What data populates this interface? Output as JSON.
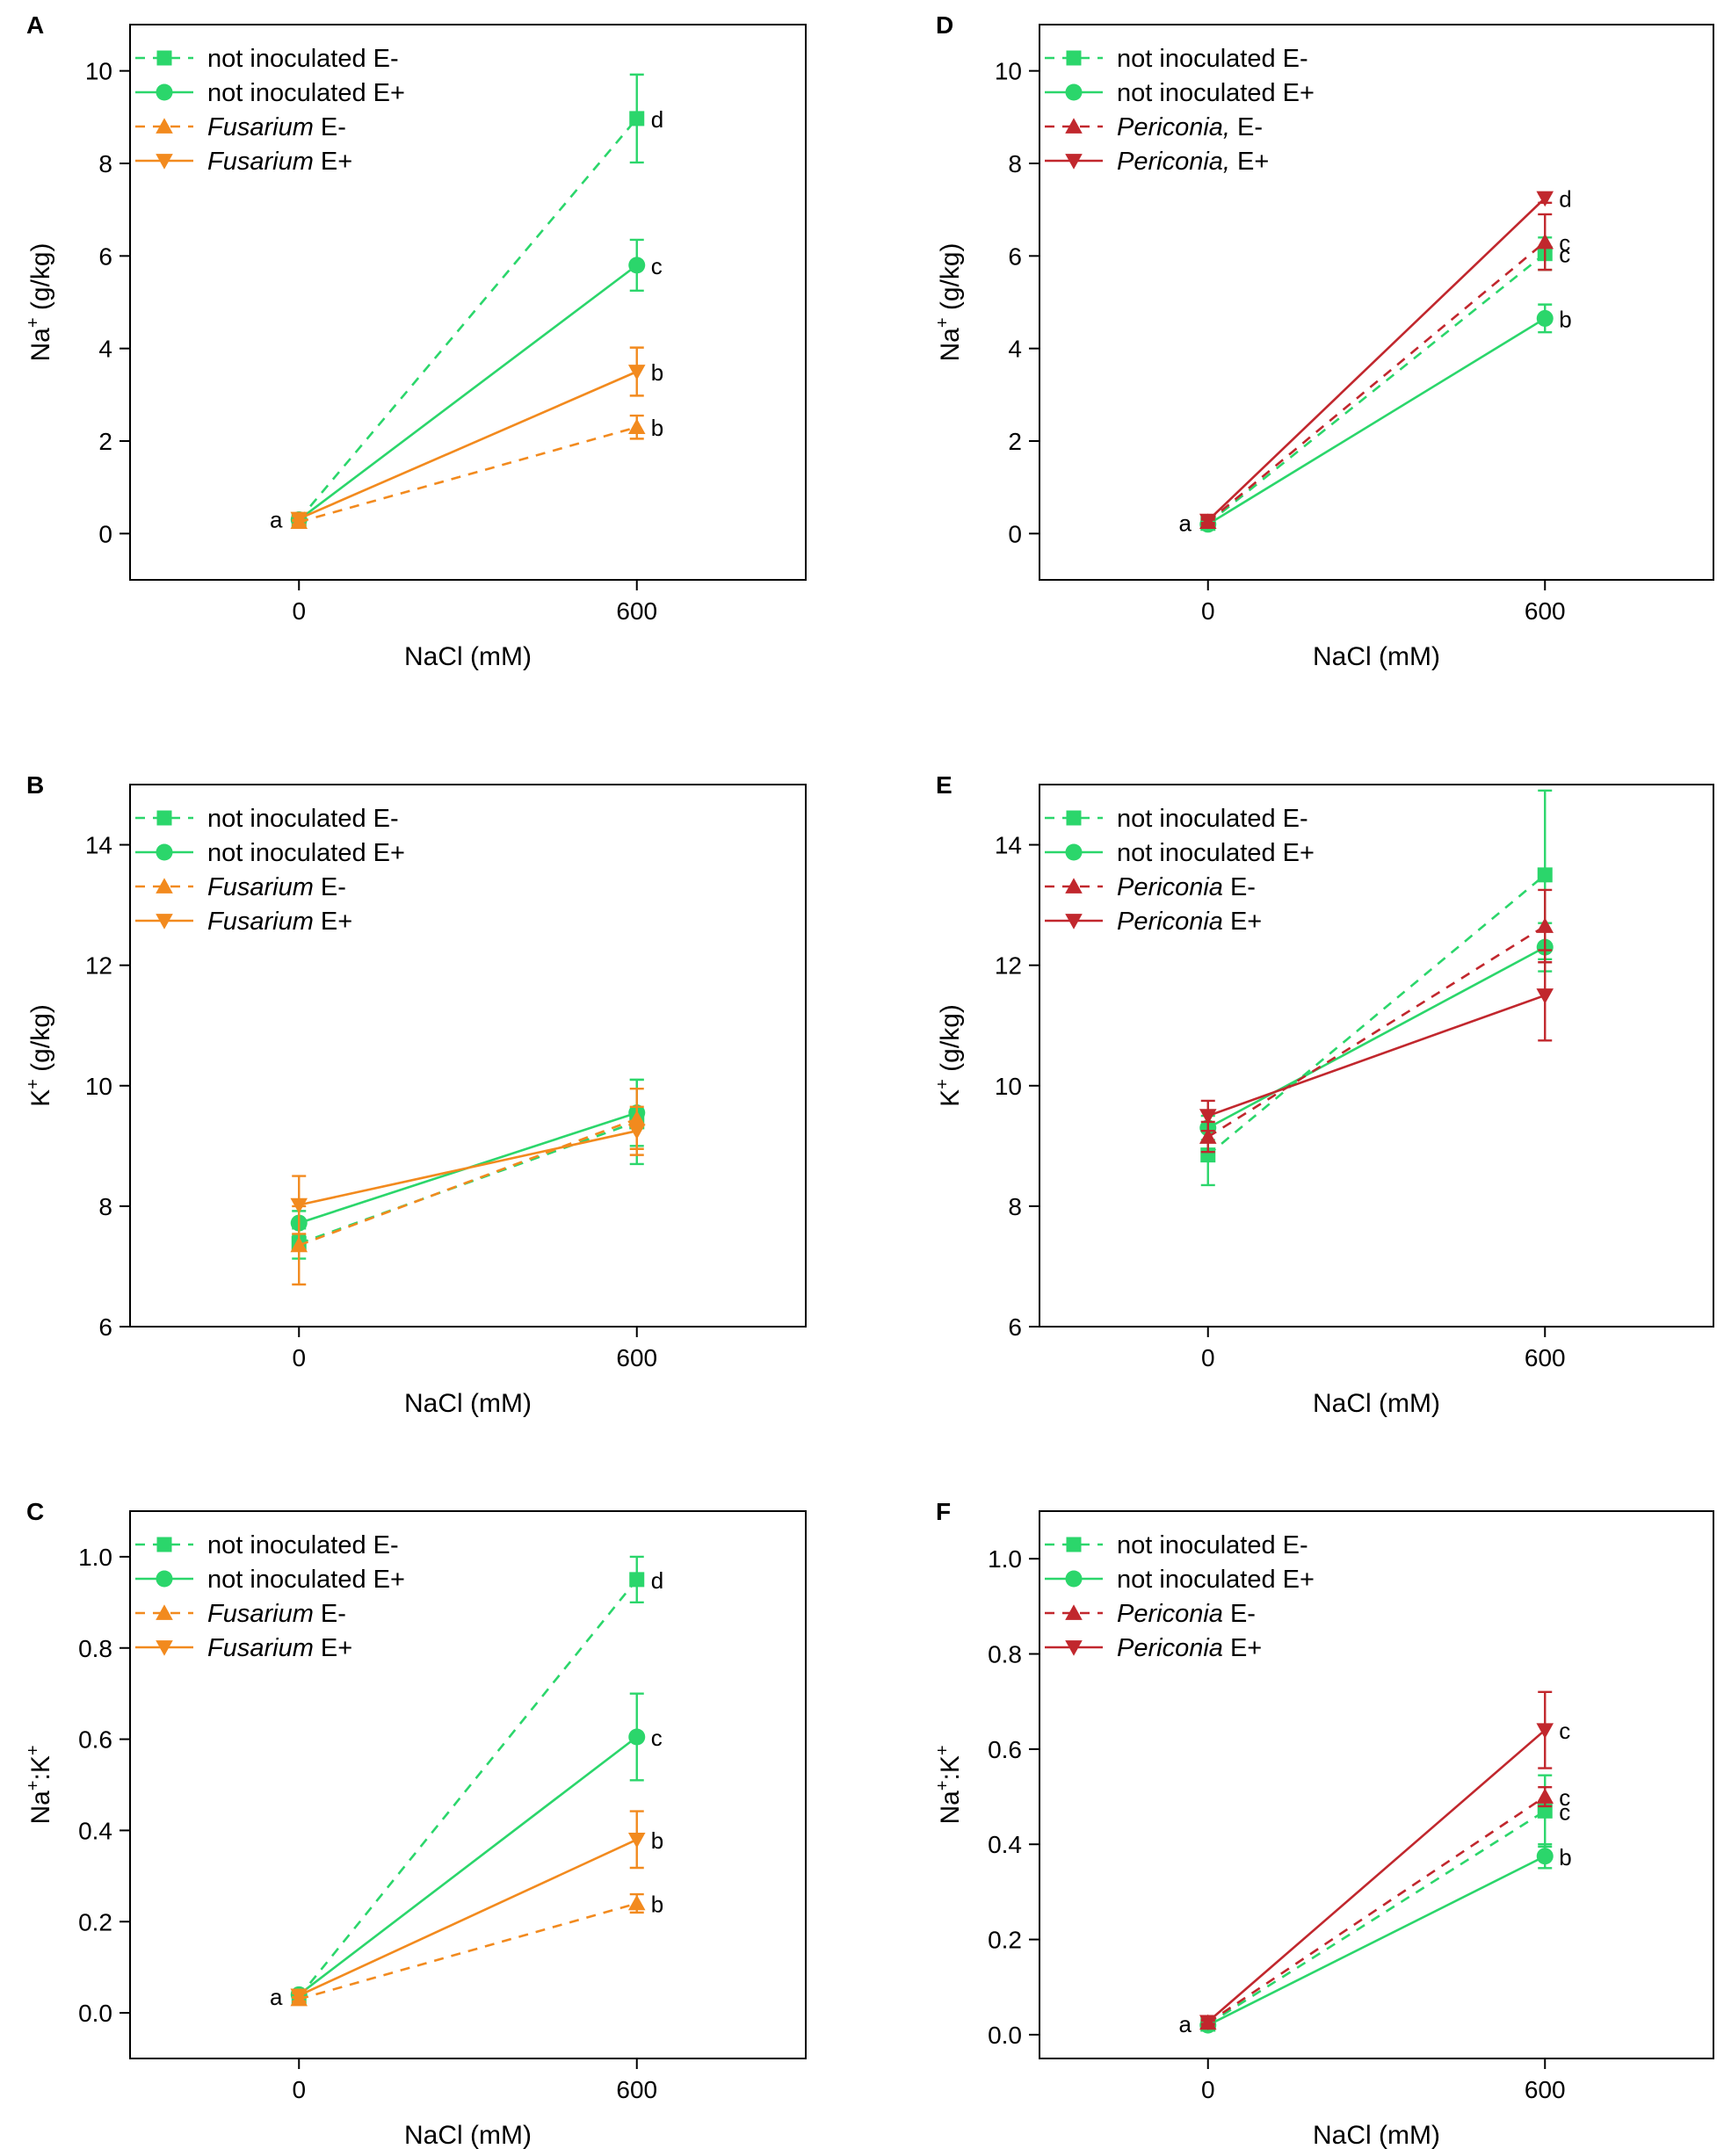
{
  "figure": {
    "colors": {
      "not_inoculated": "#2bd66b",
      "fusarium": "#f28a1e",
      "periconia": "#c1272d"
    }
  },
  "chart_data": [
    {
      "panel": "A",
      "type": "line",
      "xlabel": "NaCl (mM)",
      "ylabel_main": "Na",
      "ylabel_sup": "+",
      "ylabel_rest": " (g/kg)",
      "x": [
        0,
        600
      ],
      "xlim": [
        -300,
        900
      ],
      "xticks": [
        0,
        600
      ],
      "ylim": [
        -1,
        11
      ],
      "yticks": [
        0,
        2,
        4,
        6,
        8,
        10
      ],
      "series": [
        {
          "name": "not inoculated E-",
          "italic": "",
          "rest": "not inoculated E-",
          "color": "#2bd66b",
          "dash": true,
          "marker": "square",
          "values": [
            0.3,
            8.97
          ],
          "errors": [
            0.05,
            0.95
          ],
          "letters": [
            "",
            "d"
          ]
        },
        {
          "name": "not inoculated E+",
          "italic": "",
          "rest": "not inoculated E+",
          "color": "#2bd66b",
          "dash": false,
          "marker": "circle",
          "values": [
            0.3,
            5.8
          ],
          "errors": [
            0.05,
            0.55
          ],
          "letters": [
            "",
            "c"
          ]
        },
        {
          "name": "Fusarium E-",
          "italic": "Fusarium",
          "rest": " E-",
          "color": "#f28a1e",
          "dash": true,
          "marker": "triangle-up",
          "values": [
            0.25,
            2.3
          ],
          "errors": [
            0.05,
            0.25
          ],
          "letters": [
            "",
            "b"
          ]
        },
        {
          "name": "Fusarium E+",
          "italic": "Fusarium",
          "rest": " E+",
          "color": "#f28a1e",
          "dash": false,
          "marker": "triangle-down",
          "values": [
            0.32,
            3.5
          ],
          "errors": [
            0.05,
            0.52
          ],
          "letters": [
            "",
            "b"
          ]
        }
      ],
      "zero_letter": "a"
    },
    {
      "panel": "B",
      "type": "line",
      "xlabel": "NaCl (mM)",
      "ylabel_main": "K",
      "ylabel_sup": "+",
      "ylabel_rest": " (g/kg)",
      "x": [
        0,
        600
      ],
      "xlim": [
        -300,
        900
      ],
      "xticks": [
        0,
        600
      ],
      "ylim": [
        6,
        15
      ],
      "yticks": [
        6,
        8,
        10,
        12,
        14
      ],
      "series": [
        {
          "name": "not inoculated E-",
          "italic": "",
          "rest": "not inoculated E-",
          "color": "#2bd66b",
          "dash": true,
          "marker": "square",
          "values": [
            7.38,
            9.4
          ],
          "errors": [
            0.25,
            0.7
          ],
          "letters": [
            "",
            ""
          ]
        },
        {
          "name": "not inoculated E+",
          "italic": "",
          "rest": "not inoculated E+",
          "color": "#2bd66b",
          "dash": false,
          "marker": "circle",
          "values": [
            7.72,
            9.55
          ],
          "errors": [
            0.2,
            0.55
          ],
          "letters": [
            "",
            ""
          ]
        },
        {
          "name": "Fusarium E-",
          "italic": "Fusarium",
          "rest": " E-",
          "color": "#f28a1e",
          "dash": true,
          "marker": "triangle-up",
          "values": [
            7.35,
            9.45
          ],
          "errors": [
            0.65,
            0.5
          ],
          "letters": [
            "",
            ""
          ]
        },
        {
          "name": "Fusarium E+",
          "italic": "Fusarium",
          "rest": " E+",
          "color": "#f28a1e",
          "dash": false,
          "marker": "triangle-down",
          "values": [
            8.02,
            9.25
          ],
          "errors": [
            0.48,
            0.4
          ],
          "letters": [
            "",
            ""
          ]
        }
      ],
      "zero_letter": ""
    },
    {
      "panel": "C",
      "type": "line",
      "xlabel": "NaCl (mM)",
      "ylabel_main": "Na",
      "ylabel_sup": "+",
      "ylabel_rest": ":K",
      "ylabel_sup2": "+",
      "x": [
        0,
        600
      ],
      "xlim": [
        -300,
        900
      ],
      "xticks": [
        0,
        600
      ],
      "ylim": [
        -0.1,
        1.1
      ],
      "yticks": [
        0.0,
        0.2,
        0.4,
        0.6,
        0.8,
        1.0
      ],
      "tick_decimals": 1,
      "series": [
        {
          "name": "not inoculated E-",
          "italic": "",
          "rest": "not inoculated E-",
          "color": "#2bd66b",
          "dash": true,
          "marker": "square",
          "values": [
            0.035,
            0.95
          ],
          "errors": [
            0.005,
            0.05
          ],
          "letters": [
            "",
            "d"
          ]
        },
        {
          "name": "not inoculated E+",
          "italic": "",
          "rest": "not inoculated E+",
          "color": "#2bd66b",
          "dash": false,
          "marker": "circle",
          "values": [
            0.04,
            0.605
          ],
          "errors": [
            0.005,
            0.095
          ],
          "letters": [
            "",
            "c"
          ]
        },
        {
          "name": "Fusarium E-",
          "italic": "Fusarium",
          "rest": " E-",
          "color": "#f28a1e",
          "dash": true,
          "marker": "triangle-up",
          "values": [
            0.03,
            0.24
          ],
          "errors": [
            0.005,
            0.02
          ],
          "letters": [
            "",
            "b"
          ]
        },
        {
          "name": "Fusarium E+",
          "italic": "Fusarium",
          "rest": " E+",
          "color": "#f28a1e",
          "dash": false,
          "marker": "triangle-down",
          "values": [
            0.038,
            0.38
          ],
          "errors": [
            0.005,
            0.062
          ],
          "letters": [
            "",
            "b"
          ]
        }
      ],
      "zero_letter": "a"
    },
    {
      "panel": "D",
      "type": "line",
      "xlabel": "NaCl (mM)",
      "ylabel_main": "Na",
      "ylabel_sup": "+",
      "ylabel_rest": " (g/kg)",
      "x": [
        0,
        600
      ],
      "xlim": [
        -300,
        900
      ],
      "xticks": [
        0,
        600
      ],
      "ylim": [
        -1,
        11
      ],
      "yticks": [
        0,
        2,
        4,
        6,
        8,
        10
      ],
      "series": [
        {
          "name": "not inoculated E-",
          "italic": "",
          "rest": "not inoculated E-",
          "color": "#2bd66b",
          "dash": true,
          "marker": "square",
          "values": [
            0.22,
            6.05
          ],
          "errors": [
            0.05,
            0.35
          ],
          "letters": [
            "",
            "c"
          ]
        },
        {
          "name": "not inoculated E+",
          "italic": "",
          "rest": "not inoculated E+",
          "color": "#2bd66b",
          "dash": false,
          "marker": "circle",
          "values": [
            0.2,
            4.65
          ],
          "errors": [
            0.05,
            0.3
          ],
          "letters": [
            "",
            "b"
          ]
        },
        {
          "name": "Periconia, E-",
          "italic": "Periconia,",
          "rest": " E-",
          "color": "#c1272d",
          "dash": true,
          "marker": "triangle-up",
          "values": [
            0.25,
            6.3
          ],
          "errors": [
            0.05,
            0.6
          ],
          "letters": [
            "",
            "c"
          ]
        },
        {
          "name": "Periconia, E+",
          "italic": "Periconia,",
          "rest": " E+",
          "color": "#c1272d",
          "dash": false,
          "marker": "triangle-down",
          "values": [
            0.28,
            7.25
          ],
          "errors": [
            0.05,
            0.1
          ],
          "letters": [
            "",
            "d"
          ]
        }
      ],
      "zero_letter": "a"
    },
    {
      "panel": "E",
      "type": "line",
      "xlabel": "NaCl (mM)",
      "ylabel_main": "K",
      "ylabel_sup": "+",
      "ylabel_rest": " (g/kg)",
      "x": [
        0,
        600
      ],
      "xlim": [
        -300,
        900
      ],
      "xticks": [
        0,
        600
      ],
      "ylim": [
        6,
        15
      ],
      "yticks": [
        6,
        8,
        10,
        12,
        14
      ],
      "series": [
        {
          "name": "not inoculated E-",
          "italic": "",
          "rest": "not inoculated E-",
          "color": "#2bd66b",
          "dash": true,
          "marker": "square",
          "values": [
            8.85,
            13.5
          ],
          "errors": [
            0.5,
            1.4
          ],
          "letters": [
            "",
            ""
          ]
        },
        {
          "name": "not inoculated E+",
          "italic": "",
          "rest": "not inoculated E+",
          "color": "#2bd66b",
          "dash": false,
          "marker": "circle",
          "values": [
            9.3,
            12.3
          ],
          "errors": [
            0.2,
            0.4
          ],
          "letters": [
            "",
            ""
          ]
        },
        {
          "name": "Periconia E-",
          "italic": "Periconia",
          "rest": " E-",
          "color": "#c1272d",
          "dash": true,
          "marker": "triangle-up",
          "values": [
            9.15,
            12.65
          ],
          "errors": [
            0.25,
            0.6
          ],
          "letters": [
            "",
            ""
          ]
        },
        {
          "name": "Periconia E+",
          "italic": "Periconia",
          "rest": " E+",
          "color": "#c1272d",
          "dash": false,
          "marker": "triangle-down",
          "values": [
            9.5,
            11.5
          ],
          "errors": [
            0.25,
            0.75
          ],
          "letters": [
            "",
            ""
          ]
        }
      ],
      "zero_letter": ""
    },
    {
      "panel": "F",
      "type": "line",
      "xlabel": "NaCl (mM)",
      "ylabel_main": "Na",
      "ylabel_sup": "+",
      "ylabel_rest": ":K",
      "ylabel_sup2": "+",
      "x": [
        0,
        600
      ],
      "xlim": [
        -300,
        900
      ],
      "xticks": [
        0,
        600
      ],
      "ylim": [
        -0.05,
        1.1
      ],
      "yticks": [
        0.0,
        0.2,
        0.4,
        0.6,
        0.8,
        1.0
      ],
      "tick_decimals": 1,
      "series": [
        {
          "name": "not inoculated E-",
          "italic": "",
          "rest": "not inoculated E-",
          "color": "#2bd66b",
          "dash": true,
          "marker": "square",
          "values": [
            0.022,
            0.47
          ],
          "errors": [
            0.004,
            0.075
          ],
          "letters": [
            "",
            "c"
          ]
        },
        {
          "name": "not inoculated E+",
          "italic": "",
          "rest": "not inoculated E+",
          "color": "#2bd66b",
          "dash": false,
          "marker": "circle",
          "values": [
            0.02,
            0.375
          ],
          "errors": [
            0.004,
            0.025
          ],
          "letters": [
            "",
            "b"
          ]
        },
        {
          "name": "Periconia E-",
          "italic": "Periconia",
          "rest": " E-",
          "color": "#c1272d",
          "dash": true,
          "marker": "triangle-up",
          "values": [
            0.025,
            0.5
          ],
          "errors": [
            0.004,
            0.02
          ],
          "letters": [
            "",
            "c"
          ]
        },
        {
          "name": "Periconia E+",
          "italic": "Periconia",
          "rest": " E+",
          "color": "#c1272d",
          "dash": false,
          "marker": "triangle-down",
          "values": [
            0.027,
            0.64
          ],
          "errors": [
            0.004,
            0.08
          ],
          "letters": [
            "",
            "c"
          ]
        }
      ],
      "zero_letter": "a"
    }
  ]
}
